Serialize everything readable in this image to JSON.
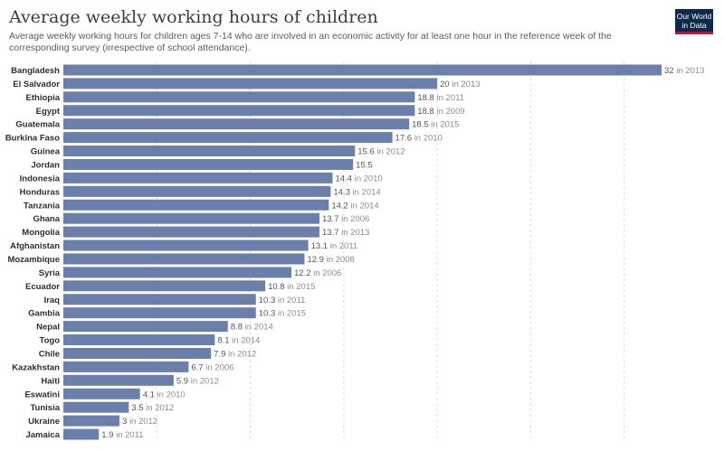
{
  "header": {
    "title": "Average weekly working hours of children",
    "subtitle": "Average weekly working hours for children ages 7-14 who are involved in an economic activity for at least one hour in the reference week of the corresponding survey (irrespective of school attendance).",
    "logo_line1": "Our World",
    "logo_line2": "in Data"
  },
  "colors": {
    "bar": "#6a7fa9",
    "grid": "#dcdcdc"
  },
  "chart_data": {
    "type": "bar",
    "orientation": "horizontal",
    "title": "Average weekly working hours of children",
    "xlim": [
      0,
      32
    ],
    "grid": true,
    "categories": [
      "Bangladesh",
      "El Salvador",
      "Ethiopia",
      "Egypt",
      "Guatemala",
      "Burkina Faso",
      "Guinea",
      "Jordan",
      "Indonesia",
      "Honduras",
      "Tanzania",
      "Ghana",
      "Mongolia",
      "Afghanistan",
      "Mozambique",
      "Syria",
      "Ecuador",
      "Iraq",
      "Gambia",
      "Nepal",
      "Togo",
      "Chile",
      "Kazakhstan",
      "Haiti",
      "Eswatini",
      "Tunisia",
      "Ukraine",
      "Jamaica"
    ],
    "values": [
      32,
      20,
      18.8,
      18.8,
      18.5,
      17.6,
      15.6,
      15.5,
      14.4,
      14.3,
      14.2,
      13.7,
      13.7,
      13.1,
      12.9,
      12.2,
      10.8,
      10.3,
      10.3,
      8.8,
      8.1,
      7.9,
      6.7,
      5.9,
      4.1,
      3.5,
      3,
      1.9
    ],
    "value_labels": [
      "32",
      "20",
      "18.8",
      "18.8",
      "18.5",
      "17.6",
      "15.6",
      "15.5",
      "14.4",
      "14.3",
      "14.2",
      "13.7",
      "13.7",
      "13.1",
      "12.9",
      "12.2",
      "10.8",
      "10.3",
      "10.3",
      "8.8",
      "8.1",
      "7.9",
      "6.7",
      "5.9",
      "4.1",
      "3.5",
      "3",
      "1.9"
    ],
    "years": [
      "in 2013",
      "in 2013",
      "in 2011",
      "in 2009",
      "in 2015",
      "in 2010",
      "in 2012",
      "",
      "in 2010",
      "in 2014",
      "in 2014",
      "in 2006",
      "in 2013",
      "in 2011",
      "in 2008",
      "in 2006",
      "in 2015",
      "in 2011",
      "in 2015",
      "in 2014",
      "in 2014",
      "in 2012",
      "in 2006",
      "in 2012",
      "in 2010",
      "in 2012",
      "in 2012",
      "in 2011"
    ]
  }
}
